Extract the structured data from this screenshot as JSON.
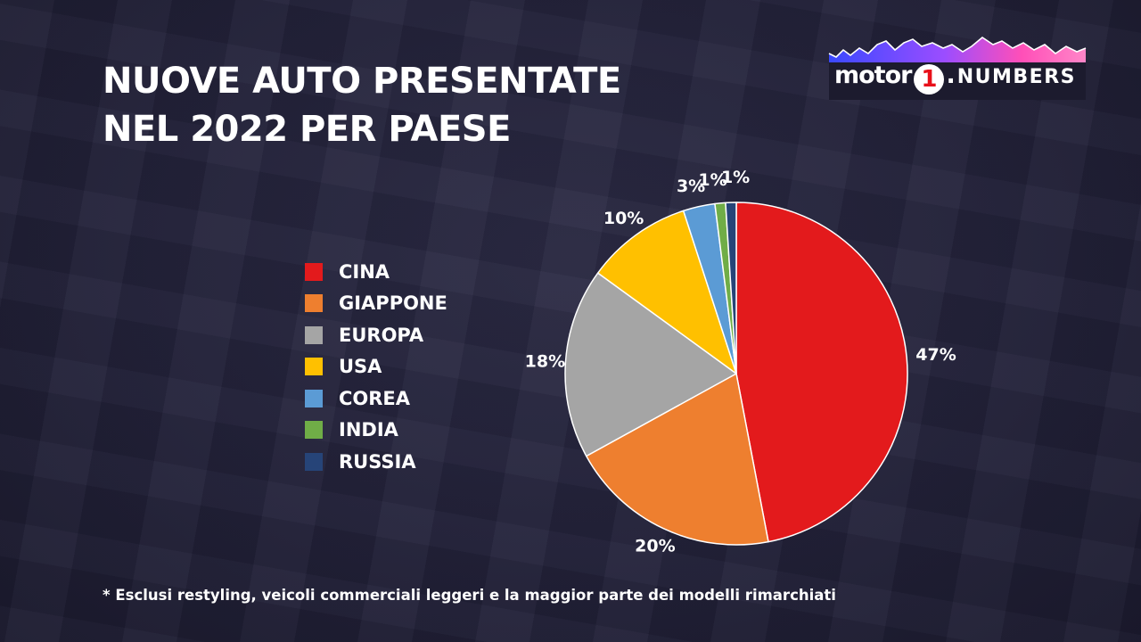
{
  "header": {
    "title_line1": "NUOVE AUTO PRESENTATE",
    "title_line2": "NEL 2022 PER PAESE"
  },
  "logo": {
    "brand": "motor",
    "brand_number": "1",
    "brand_dot": ".",
    "suffix": "NUMBERS",
    "icon": "mountain-skyline-icon",
    "brand_color": "#e8101a"
  },
  "chart_data": {
    "type": "pie",
    "title": "NUOVE AUTO PRESENTATE NEL 2022 PER PAESE",
    "categories": [
      "CINA",
      "GIAPPONE",
      "EUROPA",
      "USA",
      "COREA",
      "INDIA",
      "RUSSIA"
    ],
    "values": [
      47,
      20,
      18,
      10,
      3,
      1,
      1
    ],
    "value_labels": [
      "47%",
      "20%",
      "18%",
      "10%",
      "3%",
      "1%",
      "1%"
    ],
    "colors": [
      "#e31a1c",
      "#ee7f2f",
      "#a5a5a5",
      "#ffc000",
      "#5b9bd5",
      "#70ad47",
      "#264478"
    ],
    "legend_position": "left",
    "start": "12 o'clock, clockwise"
  },
  "footnote": "* Esclusi restyling, veicoli commerciali leggeri e la maggior parte dei modelli rimarchiati"
}
